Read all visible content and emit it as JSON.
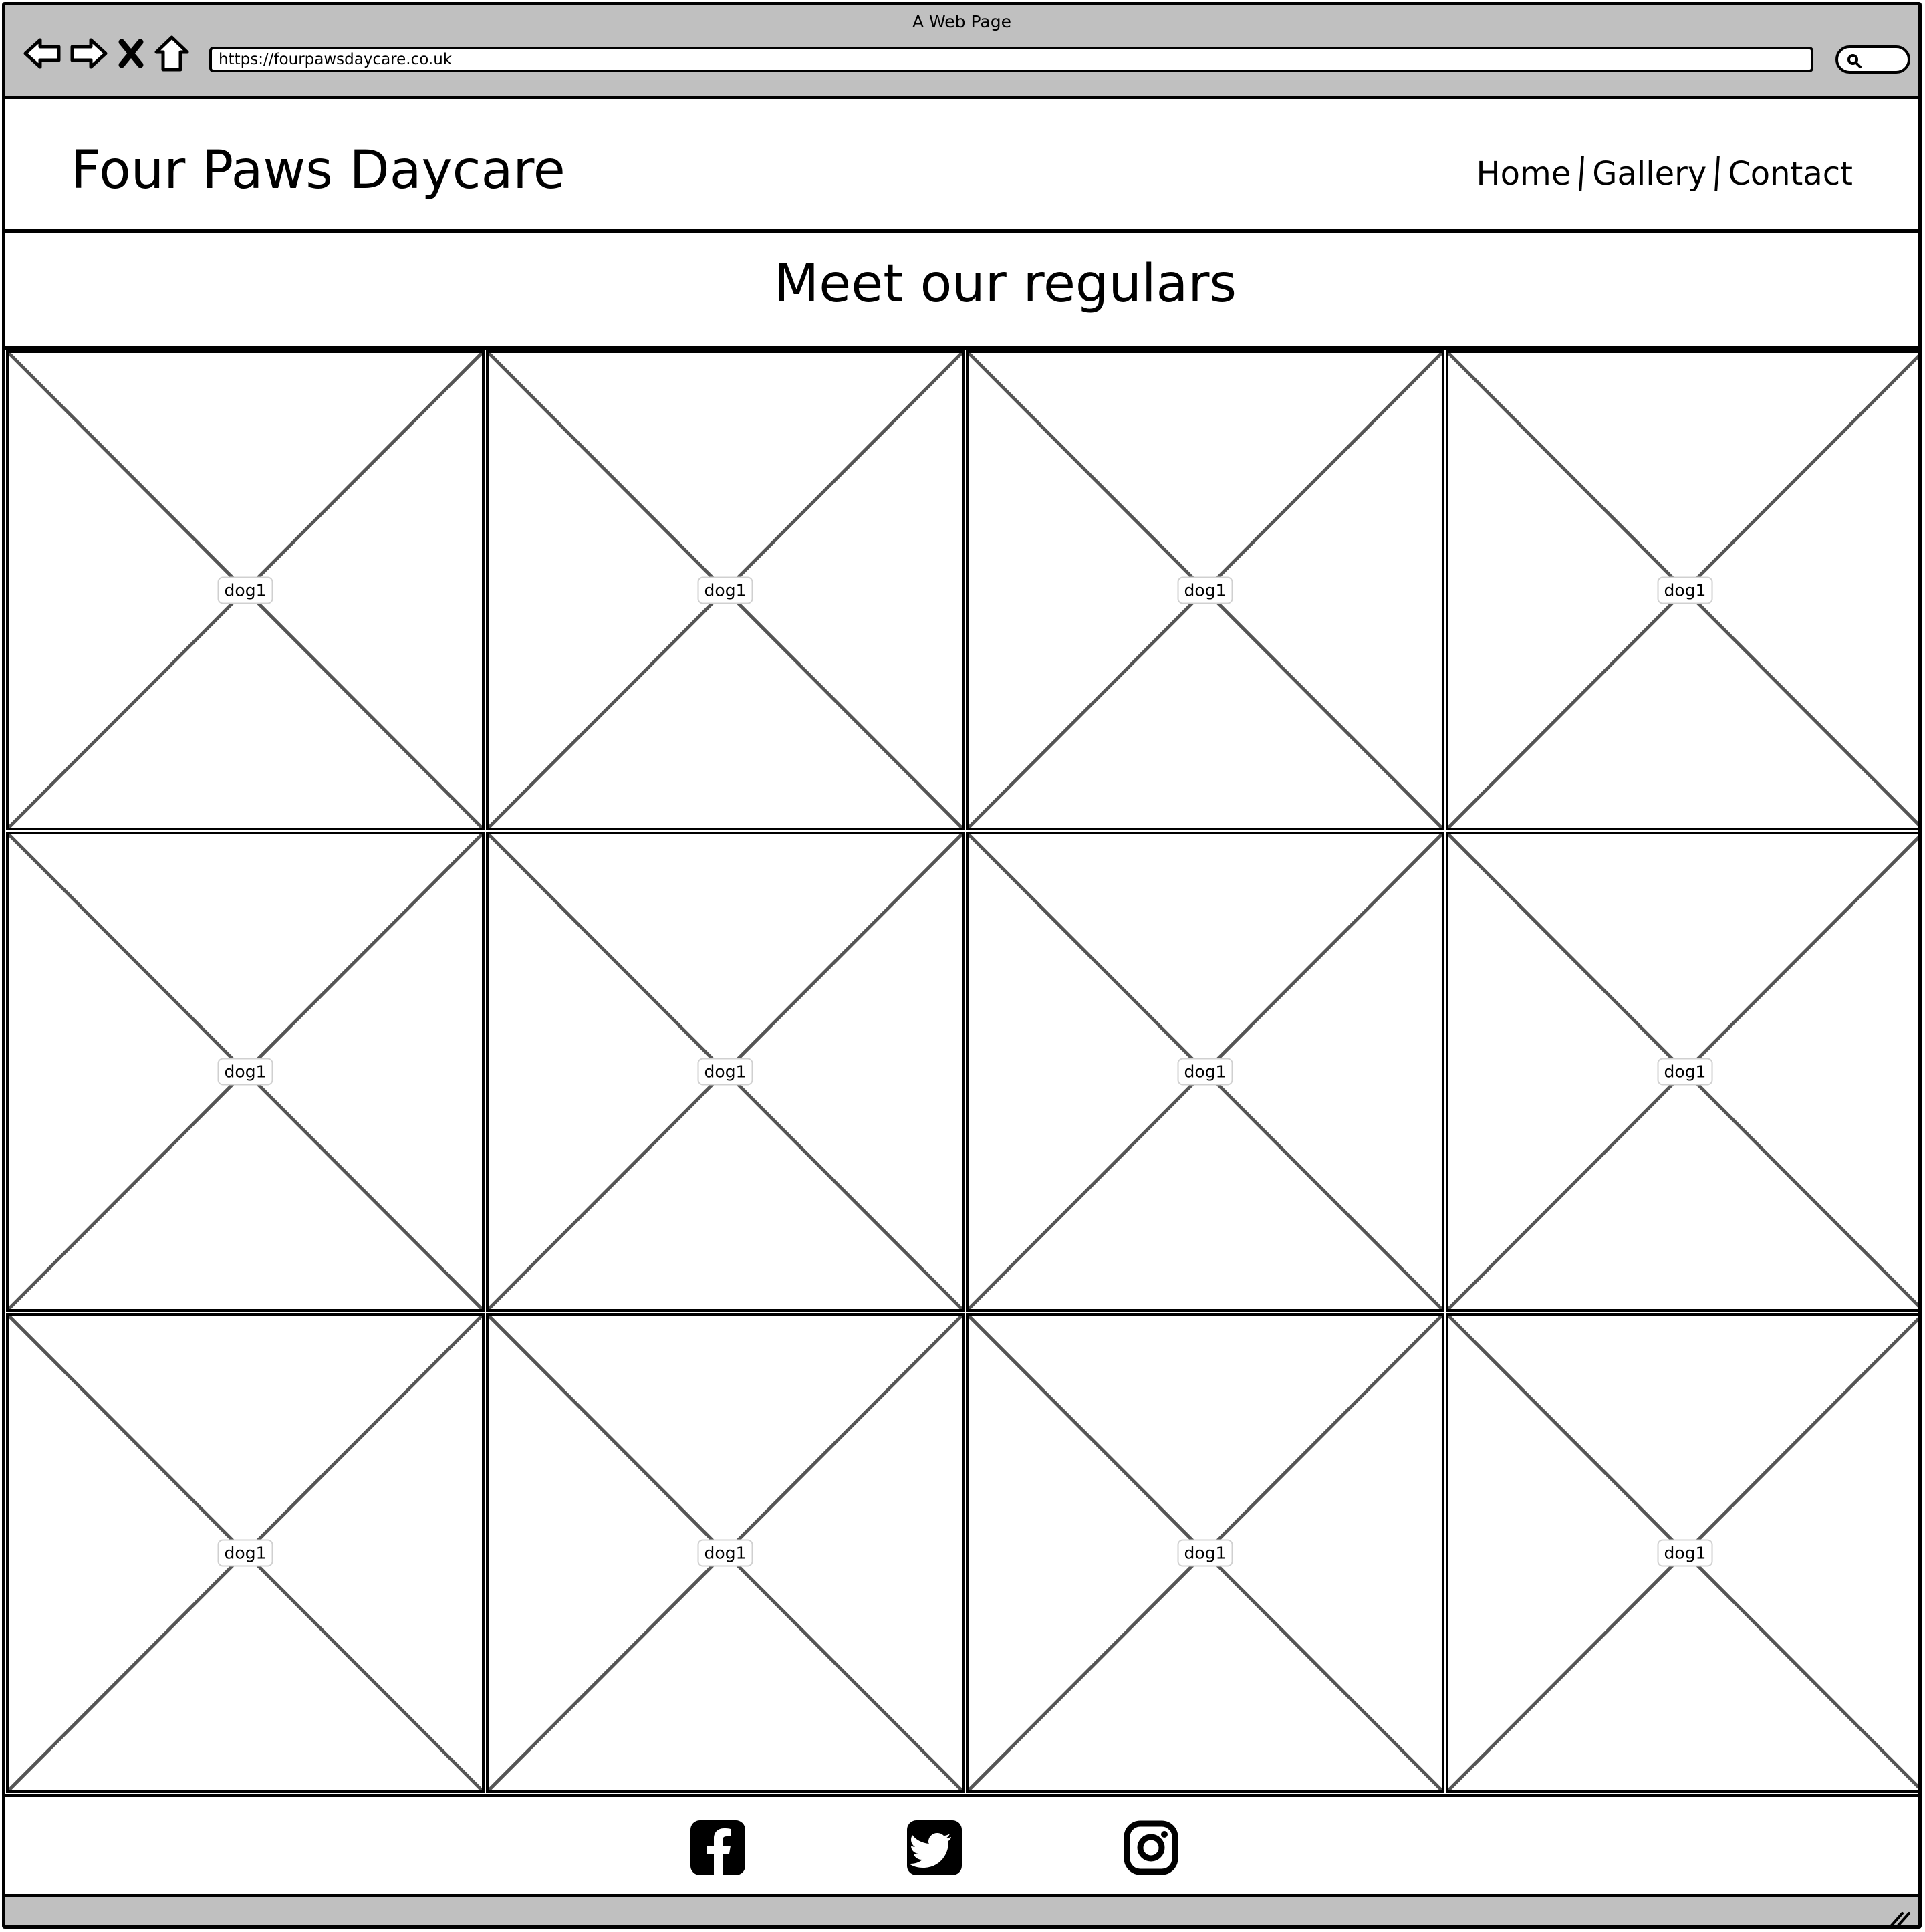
{
  "browser": {
    "window_title": "A Web Page",
    "url": "https://fourpawsdaycare.co.uk",
    "icons": [
      "back-icon",
      "forward-icon",
      "close-icon",
      "home-icon",
      "search-icon"
    ]
  },
  "header": {
    "logo": "Four Paws Daycare",
    "nav": [
      "Home",
      "Gallery",
      "Contact"
    ]
  },
  "main": {
    "heading": "Meet our regulars",
    "gallery": [
      "dog1",
      "dog1",
      "dog1",
      "dog1",
      "dog1",
      "dog1",
      "dog1",
      "dog1",
      "dog1",
      "dog1",
      "dog1",
      "dog1"
    ]
  },
  "footer": {
    "social_icons": [
      "facebook-icon",
      "twitter-icon",
      "instagram-icon"
    ]
  }
}
